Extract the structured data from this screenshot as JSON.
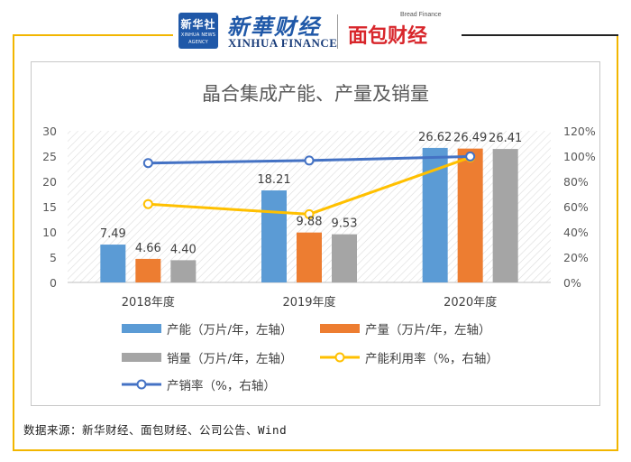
{
  "header": {
    "logo_text": "新华社",
    "logo_subtext": "XINHUA NEWS AGENCY",
    "brand_cn": "新華财经",
    "brand_en": "XINHUA FINANCE",
    "brand2_small": "Bread Finance",
    "brand2": "面包财经"
  },
  "chart_data": {
    "type": "bar",
    "title": "晶合集成产能、产量及销量",
    "categories": [
      "2018年度",
      "2019年度",
      "2020年度"
    ],
    "y_left": {
      "min": 0,
      "max": 30,
      "ticks": [
        0,
        5,
        10,
        15,
        20,
        25,
        30
      ]
    },
    "y_right": {
      "min": 0,
      "max": 120,
      "ticks": [
        "0%",
        "20%",
        "40%",
        "60%",
        "80%",
        "100%",
        "120%"
      ]
    },
    "grid": "none",
    "bar_series": [
      {
        "name": "产能（万片/年，左轴）",
        "color": "#5b9bd5",
        "values": [
          7.49,
          18.21,
          26.62
        ],
        "labels": [
          "7.49",
          "18.21",
          "26.62"
        ]
      },
      {
        "name": "产量（万片/年，左轴）",
        "color": "#ed7d31",
        "values": [
          4.66,
          9.88,
          26.49
        ],
        "labels": [
          "4.66",
          "9.88",
          "26.49"
        ]
      },
      {
        "name": "销量（万片/年，左轴）",
        "color": "#a5a5a5",
        "values": [
          4.4,
          9.53,
          26.41
        ],
        "labels": [
          "4.40",
          "9.53",
          "26.41"
        ]
      }
    ],
    "line_series": [
      {
        "name": "产能利用率（%，右轴）",
        "color": "#ffc000",
        "values": [
          62,
          54,
          99
        ]
      },
      {
        "name": "产销率（%，右轴）",
        "color": "#4472c4",
        "values": [
          94.5,
          96.5,
          99.7
        ]
      }
    ],
    "legend_position": "bottom"
  },
  "footer": {
    "source": "数据来源：新华财经、面包财经、公司公告、Wind"
  }
}
